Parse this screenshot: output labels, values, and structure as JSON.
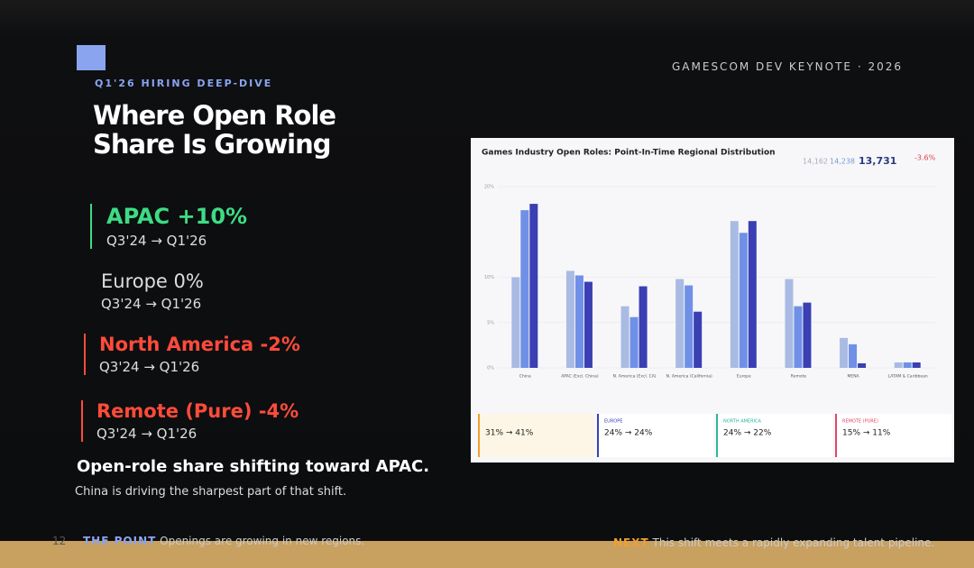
{
  "slide": {
    "eyebrow": "Q1'26 HIRING DEEP-DIVE",
    "title": "Where Open Role Share Is Growing",
    "header": "GAMESCOM DEV KEYNOTE · 2026",
    "items": [
      {
        "label": "APAC +10%",
        "period": "Q3'24 → Q1'26"
      },
      {
        "label": "Europe 0%",
        "period": "Q3'24 → Q1'26"
      },
      {
        "label": "North America -2%",
        "period": "Q3'24 → Q1'26"
      },
      {
        "label": "Remote (Pure) -4%",
        "period": "Q3'24 → Q1'26"
      }
    ],
    "takeaway": "Open-role share shifting toward APAC.",
    "subtakeaway": "China is driving the sharpest part of that shift.",
    "footer": {
      "page": "12",
      "point_label": "THE POINT",
      "point": "Openings are growing in new regions.",
      "next_label": "NEXT",
      "next": "This shift meets a rapidly expanding talent pipeline."
    }
  },
  "chart": {
    "type": "bar",
    "title": "Games Industry Open Roles: Point-In-Time Regional Distribution",
    "totals": [
      "14,162",
      "14,238",
      "13,731"
    ],
    "change": "-3.6%",
    "categories": [
      "China",
      "APAC (Excl. China)",
      "N. America (Excl. CA)",
      "N. America (California)",
      "Europe",
      "Remote",
      "MENA",
      "LATAM & Caribbean"
    ],
    "series": [
      {
        "color": "#a9bbe3",
        "values": [
          10,
          10.7,
          6.8,
          9.8,
          16.2,
          9.8,
          3.3,
          0.6
        ]
      },
      {
        "color": "#6f90e6",
        "values": [
          17.4,
          10.2,
          5.6,
          9.1,
          14.9,
          6.8,
          2.6,
          0.6
        ]
      },
      {
        "color": "#3a3fb3",
        "values": [
          18.1,
          9.5,
          9,
          6.2,
          16.2,
          7.2,
          0.5,
          0.6
        ]
      }
    ],
    "ylim": [
      0,
      20
    ],
    "yticks": [
      {
        "value": 0,
        "label": "0%"
      },
      {
        "value": 5,
        "label": "5%"
      },
      {
        "value": 10,
        "label": "10%"
      },
      {
        "value": 20,
        "label": "20%"
      }
    ],
    "cards": [
      {
        "value": "31% → 41%",
        "color": "#f0a030"
      },
      {
        "label": "EUROPE",
        "value": "24% → 24%",
        "color": "#3a3fb3"
      },
      {
        "label": "NORTH AMERICA",
        "value": "24% → 22%",
        "color": "#2bb5a0"
      },
      {
        "label": "REMOTE (PURE)",
        "value": "15% → 11%",
        "color": "#e0466a"
      }
    ]
  }
}
